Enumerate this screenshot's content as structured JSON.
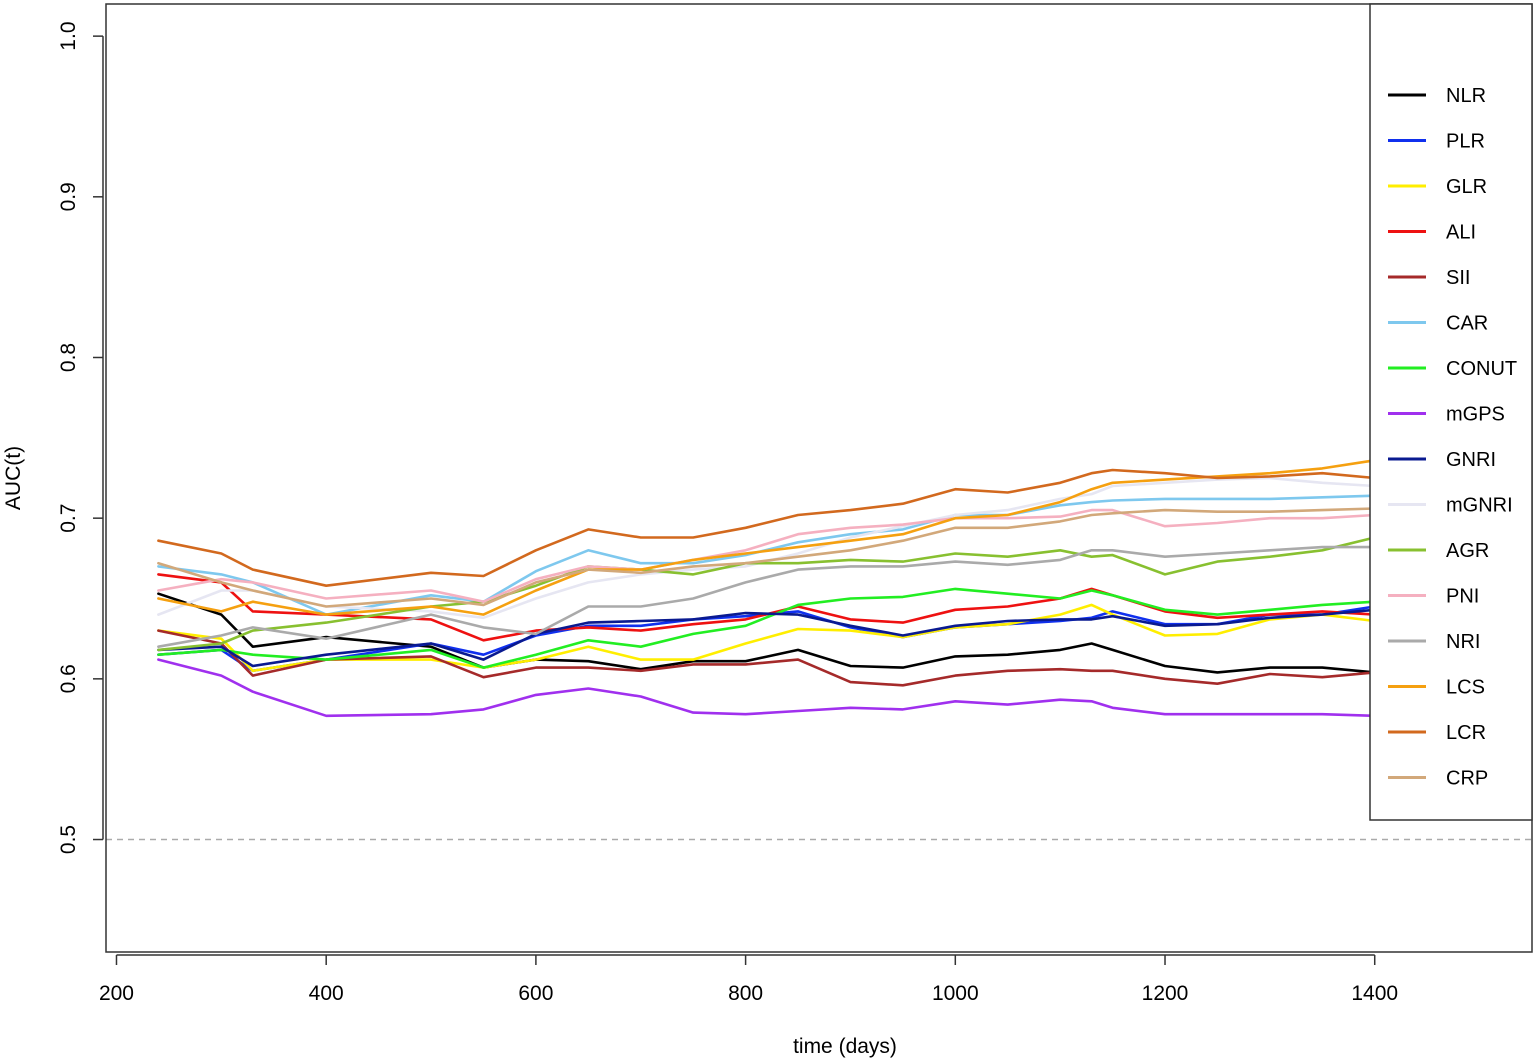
{
  "chart_data": {
    "type": "line",
    "title": "",
    "xlabel": "time (days)",
    "ylabel": "AUC(t)",
    "xlim": [
      190,
      1550
    ],
    "ylim": [
      0.43,
      1.02
    ],
    "xticks": [
      200,
      400,
      600,
      800,
      1000,
      1200,
      1400
    ],
    "yticks": [
      0.5,
      0.6,
      0.7,
      0.8,
      0.9,
      1.0
    ],
    "xtick_labels": [
      "200",
      "400",
      "600",
      "800",
      "1000",
      "1200",
      "1400"
    ],
    "ytick_labels": [
      "0.5",
      "0.6",
      "0.7",
      "0.8",
      "0.9",
      "1.0"
    ],
    "reference_line": {
      "y": 0.5,
      "style": "dashed",
      "color": "#aaaaaa"
    },
    "legend_position": "right",
    "grid": false,
    "x": [
      240,
      300,
      330,
      400,
      500,
      550,
      600,
      650,
      700,
      750,
      800,
      850,
      900,
      950,
      1000,
      1050,
      1100,
      1130,
      1150,
      1200,
      1250,
      1300,
      1350,
      1400
    ],
    "series": [
      {
        "name": "NLR",
        "color": "#000000",
        "values": [
          0.653,
          0.64,
          0.62,
          0.626,
          0.62,
          0.607,
          0.612,
          0.611,
          0.606,
          0.611,
          0.611,
          0.618,
          0.608,
          0.607,
          0.614,
          0.615,
          0.618,
          0.622,
          0.618,
          0.608,
          0.604,
          0.607,
          0.607,
          0.604
        ]
      },
      {
        "name": "PLR",
        "color": "#1030ee",
        "values": [
          0.615,
          0.618,
          0.605,
          0.612,
          0.622,
          0.615,
          0.627,
          0.633,
          0.633,
          0.637,
          0.639,
          0.642,
          0.632,
          0.626,
          0.632,
          0.634,
          0.636,
          0.638,
          0.642,
          0.634,
          0.634,
          0.64,
          0.64,
          0.645
        ]
      },
      {
        "name": "GLR",
        "color": "#ffee00",
        "values": [
          0.63,
          0.625,
          0.605,
          0.612,
          0.612,
          0.607,
          0.612,
          0.62,
          0.612,
          0.612,
          0.622,
          0.631,
          0.63,
          0.626,
          0.632,
          0.634,
          0.64,
          0.646,
          0.64,
          0.627,
          0.628,
          0.637,
          0.64,
          0.636
        ]
      },
      {
        "name": "ALI",
        "color": "#ee1111",
        "values": [
          0.665,
          0.66,
          0.642,
          0.64,
          0.637,
          0.624,
          0.63,
          0.632,
          0.63,
          0.634,
          0.637,
          0.645,
          0.637,
          0.635,
          0.643,
          0.645,
          0.65,
          0.656,
          0.652,
          0.642,
          0.638,
          0.64,
          0.642,
          0.64
        ]
      },
      {
        "name": "SII",
        "color": "#a52a2a",
        "values": [
          0.63,
          0.622,
          0.602,
          0.612,
          0.614,
          0.601,
          0.607,
          0.607,
          0.605,
          0.609,
          0.609,
          0.612,
          0.598,
          0.596,
          0.602,
          0.605,
          0.606,
          0.605,
          0.605,
          0.6,
          0.597,
          0.603,
          0.601,
          0.604
        ]
      },
      {
        "name": "CAR",
        "color": "#7ec8ee",
        "values": [
          0.67,
          0.665,
          0.66,
          0.64,
          0.652,
          0.648,
          0.667,
          0.68,
          0.672,
          0.672,
          0.677,
          0.685,
          0.69,
          0.693,
          0.702,
          0.702,
          0.708,
          0.71,
          0.711,
          0.712,
          0.712,
          0.712,
          0.713,
          0.714
        ]
      },
      {
        "name": "CONUT",
        "color": "#22ee22",
        "values": [
          0.615,
          0.618,
          0.615,
          0.612,
          0.618,
          0.607,
          0.615,
          0.624,
          0.62,
          0.628,
          0.633,
          0.646,
          0.65,
          0.651,
          0.656,
          0.653,
          0.65,
          0.655,
          0.652,
          0.643,
          0.64,
          0.643,
          0.646,
          0.648
        ]
      },
      {
        "name": "mGPS",
        "color": "#a030ee",
        "values": [
          0.612,
          0.602,
          0.592,
          0.577,
          0.578,
          0.581,
          0.59,
          0.594,
          0.589,
          0.579,
          0.578,
          0.58,
          0.582,
          0.581,
          0.586,
          0.584,
          0.587,
          0.586,
          0.582,
          0.578,
          0.578,
          0.578,
          0.578,
          0.577
        ]
      },
      {
        "name": "GNRI",
        "color": "#0a1a90",
        "values": [
          0.618,
          0.62,
          0.608,
          0.615,
          0.622,
          0.612,
          0.628,
          0.635,
          0.636,
          0.637,
          0.641,
          0.64,
          0.633,
          0.627,
          0.633,
          0.636,
          0.637,
          0.637,
          0.639,
          0.633,
          0.634,
          0.638,
          0.64,
          0.643
        ]
      },
      {
        "name": "mGNRI",
        "color": "#e6e6f2",
        "values": [
          0.64,
          0.655,
          0.655,
          0.645,
          0.642,
          0.638,
          0.65,
          0.66,
          0.665,
          0.668,
          0.67,
          0.678,
          0.688,
          0.695,
          0.702,
          0.705,
          0.712,
          0.715,
          0.72,
          0.722,
          0.724,
          0.725,
          0.722,
          0.72
        ]
      },
      {
        "name": "AGR",
        "color": "#88c030",
        "values": [
          0.618,
          0.622,
          0.63,
          0.635,
          0.645,
          0.648,
          0.658,
          0.67,
          0.668,
          0.665,
          0.672,
          0.672,
          0.674,
          0.673,
          0.678,
          0.676,
          0.68,
          0.676,
          0.677,
          0.665,
          0.673,
          0.676,
          0.68,
          0.688
        ]
      },
      {
        "name": "PNI",
        "color": "#f5b0c0",
        "values": [
          0.655,
          0.662,
          0.66,
          0.65,
          0.655,
          0.648,
          0.662,
          0.67,
          0.668,
          0.674,
          0.68,
          0.69,
          0.694,
          0.696,
          0.7,
          0.7,
          0.701,
          0.705,
          0.705,
          0.695,
          0.697,
          0.7,
          0.7,
          0.702
        ]
      },
      {
        "name": "NRI",
        "color": "#aaaaaa",
        "values": [
          0.62,
          0.627,
          0.632,
          0.625,
          0.64,
          0.632,
          0.628,
          0.645,
          0.645,
          0.65,
          0.66,
          0.668,
          0.67,
          0.67,
          0.673,
          0.671,
          0.674,
          0.68,
          0.68,
          0.676,
          0.678,
          0.68,
          0.682,
          0.682
        ]
      },
      {
        "name": "LCS",
        "color": "#f5a010",
        "values": [
          0.65,
          0.642,
          0.648,
          0.64,
          0.645,
          0.64,
          0.655,
          0.668,
          0.668,
          0.674,
          0.678,
          0.682,
          0.686,
          0.69,
          0.7,
          0.702,
          0.71,
          0.718,
          0.722,
          0.724,
          0.726,
          0.728,
          0.731,
          0.736
        ]
      },
      {
        "name": "LCR",
        "color": "#d2691e",
        "values": [
          0.686,
          0.678,
          0.668,
          0.658,
          0.666,
          0.664,
          0.68,
          0.693,
          0.688,
          0.688,
          0.694,
          0.702,
          0.705,
          0.709,
          0.718,
          0.716,
          0.722,
          0.728,
          0.73,
          0.728,
          0.725,
          0.726,
          0.728,
          0.725
        ]
      },
      {
        "name": "CRP",
        "color": "#d2a87a",
        "values": [
          0.672,
          0.66,
          0.655,
          0.645,
          0.65,
          0.646,
          0.66,
          0.668,
          0.666,
          0.67,
          0.672,
          0.676,
          0.68,
          0.686,
          0.694,
          0.694,
          0.698,
          0.702,
          0.703,
          0.705,
          0.704,
          0.704,
          0.705,
          0.706
        ]
      }
    ]
  }
}
